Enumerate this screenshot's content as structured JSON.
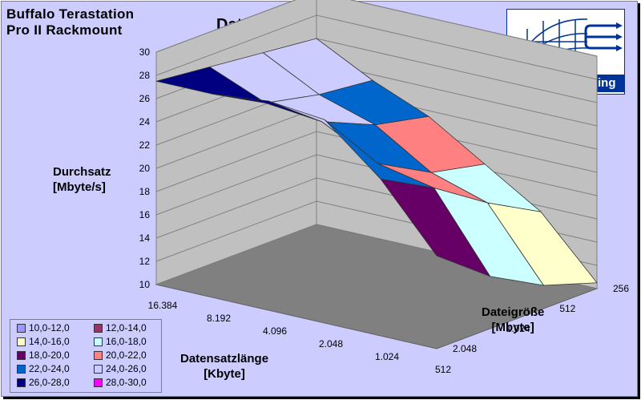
{
  "header": {
    "device_line1": "Buffalo Terastation",
    "device_line2": "Pro II Rackmount"
  },
  "logo": {
    "text": "tom´s networking"
  },
  "chart_data": {
    "type": "surface",
    "title": "Daten wahlfrei lesen",
    "ylabel_line1": "Durchsatz",
    "ylabel_line2": "[Mbyte/s]",
    "xlabel_line1": "Datensatzlänge",
    "xlabel_line2": "[Kbyte]",
    "zlabel_line1": "Dateigröße",
    "zlabel_line2": "[Mbyte]",
    "ylim": [
      10,
      30
    ],
    "y_ticks": [
      "10",
      "12",
      "14",
      "16",
      "18",
      "20",
      "22",
      "24",
      "26",
      "28",
      "30"
    ],
    "x_categories": [
      "16.384",
      "8.192",
      "4.096",
      "2.048",
      "1.024",
      "512"
    ],
    "z_categories": [
      "256",
      "512",
      "1.024",
      "2.048"
    ],
    "values": [
      [
        27.5,
        27.5,
        28.0,
        27.5,
        23.5,
        18.0
      ],
      [
        27.0,
        25.0,
        24.5,
        22.0,
        21.0,
        14.5
      ],
      [
        26.5,
        24.0,
        22.5,
        19.5,
        18.0,
        12.0
      ],
      [
        26.0,
        23.5,
        21.5,
        18.5,
        15.5,
        10.5
      ]
    ],
    "legend": [
      {
        "label": "10,0-12,0",
        "color": "#9999ff"
      },
      {
        "label": "12,0-14,0",
        "color": "#993366"
      },
      {
        "label": "14,0-16,0",
        "color": "#ffffcc"
      },
      {
        "label": "16,0-18,0",
        "color": "#ccffff"
      },
      {
        "label": "18,0-20,0",
        "color": "#660066"
      },
      {
        "label": "20,0-22,0",
        "color": "#ff8080"
      },
      {
        "label": "22,0-24,0",
        "color": "#0066cc"
      },
      {
        "label": "24,0-26,0",
        "color": "#ccccff"
      },
      {
        "label": "26,0-28,0",
        "color": "#000080"
      },
      {
        "label": "28,0-30,0",
        "color": "#ff00ff"
      }
    ],
    "legend_position": "bottom-left",
    "grid": true
  }
}
